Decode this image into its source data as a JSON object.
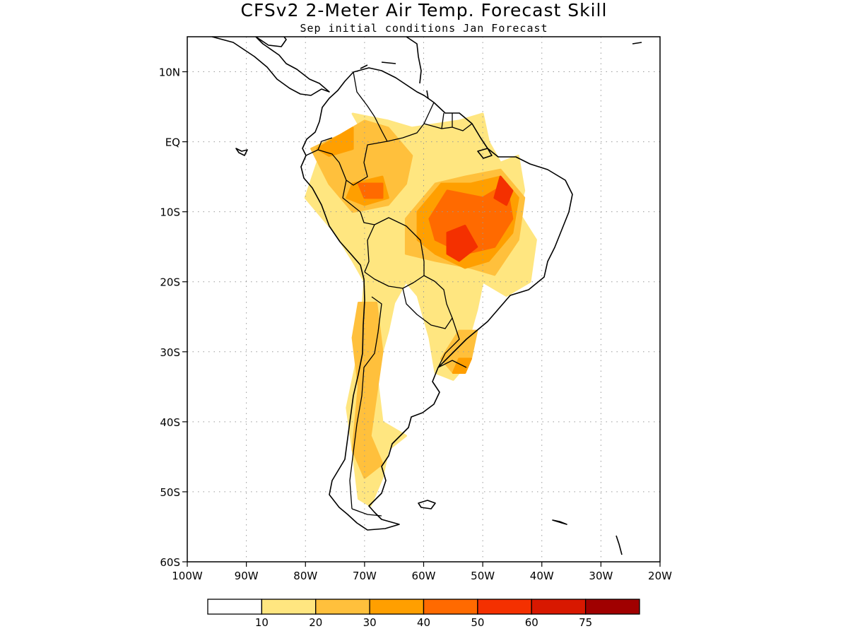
{
  "title": "CFSv2 2-Meter Air Temp. Forecast Skill",
  "subtitle": "Sep initial conditions  Jan Forecast",
  "map": {
    "lon_range": [
      -100,
      -20
    ],
    "lat_range": [
      -60,
      15
    ],
    "lon_ticks": [
      {
        "value": -100,
        "label": "100W"
      },
      {
        "value": -90,
        "label": "90W"
      },
      {
        "value": -80,
        "label": "80W"
      },
      {
        "value": -70,
        "label": "70W"
      },
      {
        "value": -60,
        "label": "60W"
      },
      {
        "value": -50,
        "label": "50W"
      },
      {
        "value": -40,
        "label": "40W"
      },
      {
        "value": -30,
        "label": "30W"
      },
      {
        "value": -20,
        "label": "20W"
      }
    ],
    "lat_ticks": [
      {
        "value": 10,
        "label": "10N"
      },
      {
        "value": 0,
        "label": "EQ"
      },
      {
        "value": -10,
        "label": "10S"
      },
      {
        "value": -20,
        "label": "20S"
      },
      {
        "value": -30,
        "label": "30S"
      },
      {
        "value": -40,
        "label": "40S"
      },
      {
        "value": -50,
        "label": "50S"
      },
      {
        "value": -60,
        "label": "60S"
      }
    ],
    "grid": true
  },
  "colorbar": {
    "bins": [
      {
        "color": "#ffffff"
      },
      {
        "color": "#ffe680"
      },
      {
        "color": "#ffc03c"
      },
      {
        "color": "#ff9f00"
      },
      {
        "color": "#ff6a00"
      },
      {
        "color": "#f43000"
      },
      {
        "color": "#d81800"
      },
      {
        "color": "#a00000"
      }
    ],
    "labels": [
      "10",
      "20",
      "30",
      "40",
      "50",
      "60",
      "75"
    ]
  },
  "skill_regions": [
    {
      "level": 1,
      "points": [
        [
          -80,
          -8
        ],
        [
          -78,
          -3
        ],
        [
          -72,
          -1
        ],
        [
          -70,
          1
        ],
        [
          -72,
          4
        ],
        [
          -66,
          3
        ],
        [
          -62,
          2
        ],
        [
          -54,
          3
        ],
        [
          -50,
          4
        ],
        [
          -49,
          0
        ],
        [
          -47,
          -3
        ],
        [
          -44,
          -2
        ],
        [
          -43,
          -7
        ],
        [
          -44,
          -10
        ],
        [
          -41,
          -14
        ],
        [
          -42,
          -20
        ],
        [
          -46,
          -22
        ],
        [
          -50,
          -20
        ],
        [
          -51,
          -24
        ],
        [
          -52,
          -27
        ],
        [
          -52,
          -31
        ],
        [
          -55,
          -34
        ],
        [
          -58,
          -33
        ],
        [
          -59,
          -28
        ],
        [
          -61,
          -22
        ],
        [
          -63,
          -20
        ],
        [
          -65,
          -23
        ],
        [
          -66,
          -27
        ],
        [
          -68,
          -33
        ],
        [
          -67,
          -40
        ],
        [
          -63,
          -42
        ],
        [
          -66,
          -44
        ],
        [
          -67,
          -48
        ],
        [
          -69,
          -52
        ],
        [
          -71,
          -51
        ],
        [
          -72,
          -44
        ],
        [
          -73,
          -38
        ],
        [
          -71,
          -30
        ],
        [
          -70,
          -20
        ],
        [
          -72,
          -17
        ],
        [
          -75,
          -13
        ],
        [
          -77,
          -11
        ],
        [
          -79,
          -9
        ]
      ]
    },
    {
      "level": 2,
      "points": [
        [
          -79,
          -1
        ],
        [
          -74,
          1
        ],
        [
          -70,
          3
        ],
        [
          -66,
          2
        ],
        [
          -62,
          -2
        ],
        [
          -63,
          -6
        ],
        [
          -66,
          -9
        ],
        [
          -72,
          -10
        ],
        [
          -76,
          -6
        ]
      ]
    },
    {
      "level": 2,
      "points": [
        [
          -63,
          -11
        ],
        [
          -58,
          -6
        ],
        [
          -53,
          -5
        ],
        [
          -47,
          -4
        ],
        [
          -43,
          -8
        ],
        [
          -44,
          -14
        ],
        [
          -48,
          -19
        ],
        [
          -52,
          -18
        ],
        [
          -58,
          -17
        ],
        [
          -63,
          -16
        ]
      ]
    },
    {
      "level": 2,
      "points": [
        [
          -71,
          -23
        ],
        [
          -68,
          -23
        ],
        [
          -67,
          -30
        ],
        [
          -68,
          -36
        ],
        [
          -69,
          -42
        ],
        [
          -67,
          -46
        ],
        [
          -70,
          -48
        ],
        [
          -72,
          -44
        ],
        [
          -71,
          -35
        ],
        [
          -72,
          -28
        ]
      ]
    },
    {
      "level": 2,
      "points": [
        [
          -54,
          -27
        ],
        [
          -51,
          -27
        ],
        [
          -52,
          -31
        ],
        [
          -55,
          -33
        ],
        [
          -57,
          -31
        ]
      ]
    },
    {
      "level": 3,
      "points": [
        [
          -78,
          -1
        ],
        [
          -74,
          1
        ],
        [
          -72,
          2
        ],
        [
          -72,
          -1
        ],
        [
          -76,
          -2
        ]
      ]
    },
    {
      "level": 3,
      "points": [
        [
          -72,
          -6
        ],
        [
          -67,
          -5
        ],
        [
          -66,
          -8
        ],
        [
          -70,
          -9
        ],
        [
          -73,
          -8
        ]
      ]
    },
    {
      "level": 3,
      "points": [
        [
          -61,
          -10
        ],
        [
          -57,
          -6
        ],
        [
          -52,
          -6
        ],
        [
          -47,
          -5
        ],
        [
          -44,
          -8
        ],
        [
          -45,
          -13
        ],
        [
          -49,
          -17
        ],
        [
          -53,
          -18
        ],
        [
          -58,
          -16
        ],
        [
          -61,
          -14
        ]
      ]
    },
    {
      "level": 3,
      "points": [
        [
          -52,
          -31
        ],
        [
          -54,
          -31
        ],
        [
          -55,
          -33
        ],
        [
          -53,
          -33
        ]
      ]
    },
    {
      "level": 4,
      "points": [
        [
          -59,
          -11
        ],
        [
          -56,
          -7
        ],
        [
          -50,
          -8
        ],
        [
          -46,
          -6
        ],
        [
          -45,
          -11
        ],
        [
          -48,
          -15
        ],
        [
          -53,
          -16
        ],
        [
          -58,
          -14
        ]
      ]
    },
    {
      "level": 4,
      "points": [
        [
          -71,
          -6
        ],
        [
          -67,
          -6
        ],
        [
          -67,
          -8
        ],
        [
          -70,
          -8
        ]
      ]
    },
    {
      "level": 5,
      "points": [
        [
          -56,
          -13
        ],
        [
          -53,
          -12
        ],
        [
          -51,
          -15
        ],
        [
          -54,
          -17
        ],
        [
          -56,
          -16
        ]
      ]
    },
    {
      "level": 5,
      "points": [
        [
          -47,
          -5
        ],
        [
          -45,
          -7
        ],
        [
          -46,
          -9
        ],
        [
          -48,
          -8
        ]
      ]
    }
  ]
}
